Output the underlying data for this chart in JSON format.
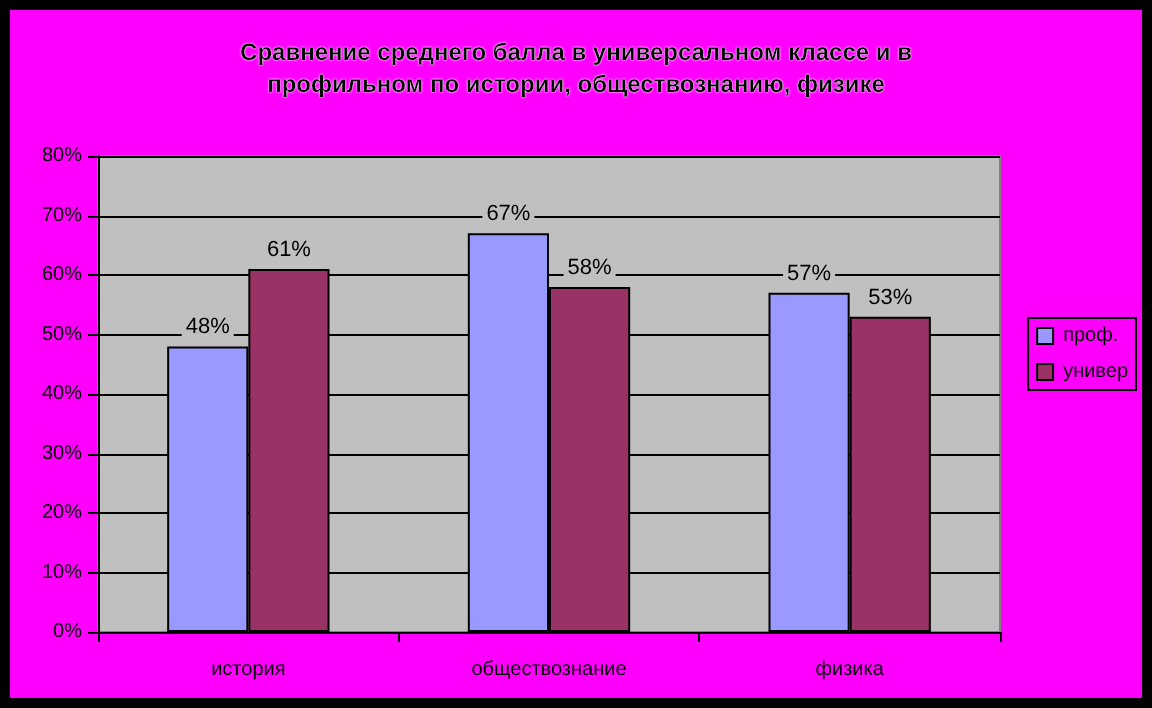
{
  "chart_data": {
    "type": "bar",
    "title": "Сравнение среднего балла в универсальном классе и в\nпрофильном по истории, обществознанию, физике",
    "categories": [
      "история",
      "обществознание",
      "физика"
    ],
    "series": [
      {
        "name": "проф.",
        "color": "#9999ff",
        "values": [
          48,
          67,
          57
        ],
        "value_labels": [
          "48%",
          "67%",
          "57%"
        ]
      },
      {
        "name": "универ",
        "color": "#993366",
        "values": [
          61,
          58,
          53
        ],
        "value_labels": [
          "61%",
          "58%",
          "53%"
        ]
      }
    ],
    "ylim": [
      0,
      80
    ],
    "yticks": [
      {
        "value": 0,
        "label": "0%"
      },
      {
        "value": 10,
        "label": "10%"
      },
      {
        "value": 20,
        "label": "20%"
      },
      {
        "value": 30,
        "label": "30%"
      },
      {
        "value": 40,
        "label": "40%"
      },
      {
        "value": 50,
        "label": "50%"
      },
      {
        "value": 60,
        "label": "60%"
      },
      {
        "value": 70,
        "label": "70%"
      },
      {
        "value": 80,
        "label": "80%"
      }
    ],
    "grid": "y",
    "legend": "right"
  }
}
